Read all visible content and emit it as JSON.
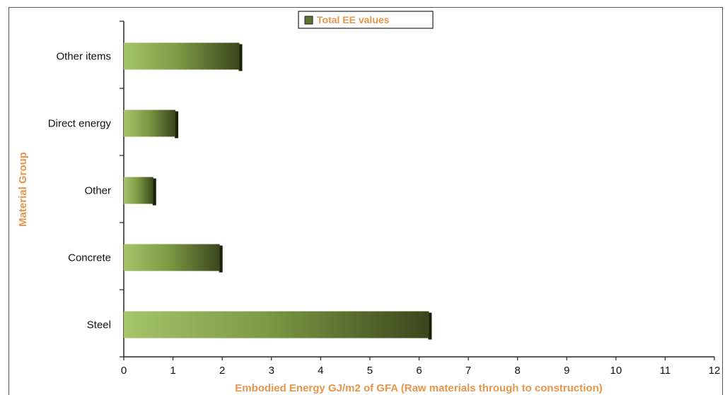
{
  "chart_data": {
    "type": "bar",
    "orientation": "horizontal",
    "categories": [
      "Steel",
      "Concrete",
      "Other",
      "Direct energy",
      "Other items"
    ],
    "series": [
      {
        "name": "Total EE values",
        "values": [
          6.2,
          1.95,
          0.6,
          1.05,
          2.35
        ]
      }
    ],
    "xlabel": "Embodied Energy GJ/m2 of GFA (Raw materials through to construction)",
    "ylabel": "Material Group",
    "xlim": [
      0,
      12
    ],
    "xticks": [
      "0",
      "1",
      "2",
      "3",
      "4",
      "5",
      "6",
      "7",
      "8",
      "9",
      "10",
      "11",
      "12"
    ],
    "grid": false,
    "legend_position": "top-center",
    "colors": {
      "bar_light": "#a6c46a",
      "bar_dark": "#39471c",
      "bar_side": "#1a2209",
      "title_orange": "#e8954c"
    }
  }
}
